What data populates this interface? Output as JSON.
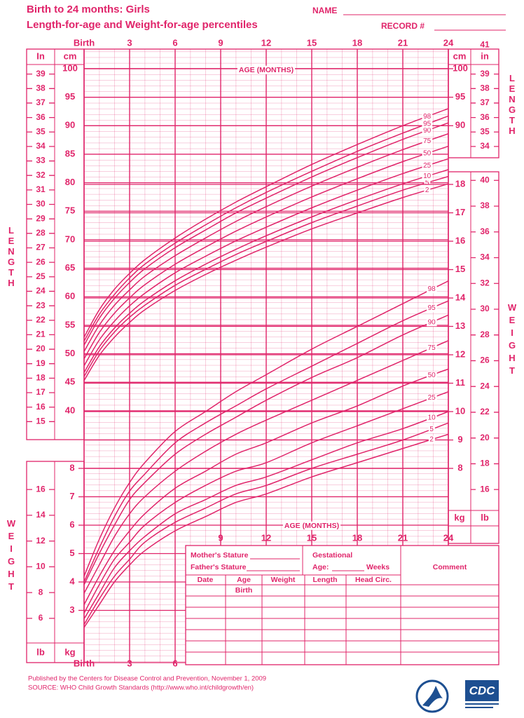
{
  "header": {
    "title": "Birth to 24 months: Girls",
    "subtitle": "Length-for-age and Weight-for-age percentiles",
    "name": "NAME",
    "record": "RECORD #"
  },
  "chart_data": [
    {
      "type": "line",
      "title": "LENGTH",
      "x_label": "AGE (MONTHS)",
      "y_unit": "cm",
      "y2_unit": "In",
      "y2_unit_right": "in",
      "color": "#e0246a",
      "grid": true,
      "x": [
        0,
        1,
        2,
        3,
        4,
        6,
        8,
        10,
        12,
        15,
        18,
        21,
        24
      ],
      "xlim": [
        0,
        24
      ],
      "xticks": [
        {
          "value": 0,
          "label": "Birth"
        },
        3,
        6,
        9,
        12,
        15,
        18,
        21,
        24
      ],
      "ylim": [
        35,
        103.5
      ],
      "yticks": [
        40,
        45,
        50,
        55,
        60,
        65,
        70,
        75,
        80,
        85,
        90,
        95,
        100
      ],
      "yticks_right": [
        90,
        95,
        100
      ],
      "y2lim": [
        13.78,
        40.75
      ],
      "y2ticks": [
        15,
        16,
        17,
        18,
        19,
        20,
        21,
        22,
        23,
        24,
        25,
        26,
        27,
        28,
        29,
        30,
        31,
        32,
        33,
        34,
        35,
        36,
        37,
        38,
        39
      ],
      "y2ticks_right": [
        34,
        35,
        36,
        37,
        38,
        39,
        41
      ],
      "series": [
        {
          "name": "2",
          "values": [
            45.3,
            49.7,
            52.9,
            55.5,
            57.7,
            61.1,
            63.9,
            66.4,
            68.7,
            71.9,
            74.7,
            77.4,
            79.8
          ]
        },
        {
          "name": "5",
          "values": [
            46.0,
            50.5,
            53.8,
            56.4,
            58.5,
            62.0,
            64.8,
            67.4,
            69.7,
            73.0,
            75.9,
            78.7,
            81.1
          ]
        },
        {
          "name": "10",
          "values": [
            46.7,
            51.2,
            54.5,
            57.1,
            59.3,
            62.8,
            65.7,
            68.3,
            70.7,
            74.0,
            77.0,
            79.8,
            82.3
          ]
        },
        {
          "name": "25",
          "values": [
            47.9,
            52.4,
            55.7,
            58.4,
            60.6,
            64.2,
            67.1,
            69.8,
            72.2,
            75.6,
            78.7,
            81.6,
            84.2
          ]
        },
        {
          "name": "50",
          "values": [
            49.1,
            53.7,
            57.1,
            59.8,
            62.1,
            65.7,
            68.7,
            71.5,
            74.0,
            77.5,
            80.7,
            83.7,
            86.4
          ]
        },
        {
          "name": "75",
          "values": [
            50.4,
            55.0,
            58.5,
            61.2,
            63.6,
            67.2,
            70.3,
            73.2,
            75.8,
            79.4,
            82.7,
            85.8,
            88.6
          ]
        },
        {
          "name": "90",
          "values": [
            51.5,
            56.2,
            59.7,
            62.5,
            64.9,
            68.6,
            71.7,
            74.7,
            77.3,
            81.0,
            84.4,
            87.6,
            90.5
          ]
        },
        {
          "name": "95",
          "values": [
            52.2,
            56.9,
            60.4,
            63.3,
            65.7,
            69.4,
            72.6,
            75.6,
            78.3,
            82.0,
            85.5,
            88.7,
            91.7
          ]
        },
        {
          "name": "98",
          "values": [
            52.9,
            57.7,
            61.3,
            64.1,
            66.5,
            70.3,
            73.6,
            76.6,
            79.3,
            83.2,
            86.7,
            90.0,
            93.0
          ]
        }
      ]
    },
    {
      "type": "line",
      "title": "WEIGHT",
      "x_label": "AGE (MONTHS)",
      "y_unit": "kg",
      "y2_unit": "lb",
      "y2_unit_right": "lb",
      "color": "#e0246a",
      "grid": true,
      "x": [
        0,
        1,
        2,
        3,
        4,
        6,
        8,
        10,
        12,
        15,
        18,
        21,
        24
      ],
      "xlim": [
        0,
        24
      ],
      "xticks": [
        {
          "value": 0,
          "label": "Birth"
        },
        3,
        6,
        9,
        12,
        15,
        18,
        21,
        24
      ],
      "ylim": [
        1.2,
        18.5
      ],
      "yticks": [
        3,
        4,
        5,
        6,
        7,
        8
      ],
      "yticks_right": [
        8,
        9,
        10,
        11,
        12,
        13,
        14,
        15,
        16,
        17,
        18
      ],
      "y2lim": [
        2.65,
        40.79
      ],
      "y2ticks": [
        6,
        8,
        10,
        12,
        14,
        16
      ],
      "y2ticks_right": [
        16,
        18,
        20,
        22,
        24,
        26,
        28,
        30,
        32,
        34,
        36,
        38,
        40
      ],
      "series": [
        {
          "name": "2",
          "values": [
            2.4,
            3.2,
            4.0,
            4.6,
            5.1,
            5.8,
            6.3,
            6.8,
            7.1,
            7.7,
            8.2,
            8.7,
            9.2
          ]
        },
        {
          "name": "5",
          "values": [
            2.5,
            3.4,
            4.2,
            4.8,
            5.4,
            6.1,
            6.6,
            7.1,
            7.4,
            8.0,
            8.5,
            9.0,
            9.6
          ]
        },
        {
          "name": "10",
          "values": [
            2.7,
            3.6,
            4.5,
            5.1,
            5.6,
            6.4,
            6.9,
            7.4,
            7.7,
            8.3,
            8.9,
            9.4,
            10.0
          ]
        },
        {
          "name": "25",
          "values": [
            2.9,
            3.9,
            4.8,
            5.4,
            6.0,
            6.8,
            7.4,
            7.9,
            8.2,
            8.9,
            9.5,
            10.1,
            10.7
          ]
        },
        {
          "name": "50",
          "values": [
            3.2,
            4.2,
            5.1,
            5.8,
            6.4,
            7.3,
            7.9,
            8.5,
            8.9,
            9.6,
            10.2,
            10.9,
            11.5
          ]
        },
        {
          "name": "75",
          "values": [
            3.6,
            4.6,
            5.6,
            6.4,
            7.0,
            7.9,
            8.6,
            9.2,
            9.7,
            10.4,
            11.1,
            11.8,
            12.5
          ]
        },
        {
          "name": "90",
          "values": [
            3.9,
            5.0,
            6.0,
            6.9,
            7.5,
            8.5,
            9.2,
            9.8,
            10.4,
            11.2,
            11.9,
            12.7,
            13.4
          ]
        },
        {
          "name": "95",
          "values": [
            4.0,
            5.2,
            6.3,
            7.2,
            7.8,
            8.9,
            9.6,
            10.2,
            10.8,
            11.6,
            12.4,
            13.2,
            13.9
          ]
        },
        {
          "name": "98",
          "values": [
            4.2,
            5.5,
            6.6,
            7.5,
            8.2,
            9.3,
            10.0,
            10.7,
            11.3,
            12.2,
            13.0,
            13.8,
            14.6
          ]
        }
      ]
    }
  ],
  "form": {
    "mothers_stature": "Mother's Stature",
    "fathers_stature": "Father's Stature",
    "gestational": "Gestational",
    "age": "Age:",
    "weeks": "Weeks",
    "comment": "Comment",
    "columns": [
      "Date",
      "Age",
      "Weight",
      "Length",
      "Head Circ."
    ],
    "first_age": "Birth"
  },
  "footer": {
    "published": "Published by the Centers for Disease Control and Prevention, November 1, 2009",
    "source": "SOURCE:  WHO Child Growth Standards (http://www.who.int/childgrowth/en)"
  },
  "logo": {
    "text": "CDC"
  }
}
